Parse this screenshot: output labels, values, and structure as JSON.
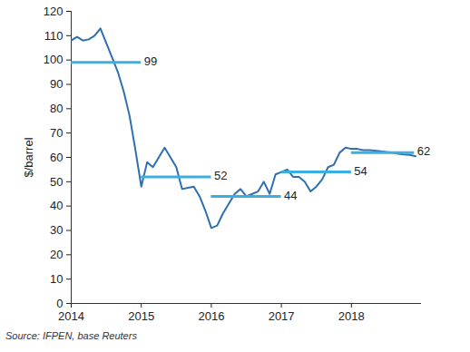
{
  "chart_data": {
    "type": "line",
    "caption": "Source: IFPEN, base Reuters",
    "y_label": "$/barrel",
    "color": "#2f6fb0",
    "x": [
      2014,
      2014.0833,
      2014.1667,
      2014.25,
      2014.3333,
      2014.4167,
      2014.5,
      2014.5833,
      2014.6667,
      2014.75,
      2014.8333,
      2014.9167,
      2015,
      2015.0833,
      2015.1667,
      2015.25,
      2015.3333,
      2015.4167,
      2015.5,
      2015.5833,
      2015.6667,
      2015.75,
      2015.8333,
      2015.9167,
      2016,
      2016.0833,
      2016.1667,
      2016.25,
      2016.3333,
      2016.4167,
      2016.5,
      2016.5833,
      2016.6667,
      2016.75,
      2016.8333,
      2016.9167,
      2017,
      2017.0833,
      2017.1667,
      2017.25,
      2017.3333,
      2017.4167,
      2017.5,
      2017.5833,
      2017.6667,
      2017.75,
      2017.8333,
      2017.9167,
      2018,
      2018.0833,
      2018.1667,
      2018.25,
      2018.3333,
      2018.4167,
      2018.5,
      2018.5833,
      2018.6667,
      2018.75,
      2018.8333,
      2018.9167
    ],
    "values": [
      108,
      109.5,
      108,
      108.5,
      110,
      113,
      107,
      101,
      95,
      87,
      77,
      63,
      48,
      58,
      56,
      60,
      64,
      60,
      56,
      47,
      47.5,
      48,
      44,
      38,
      31,
      32,
      37,
      41,
      45,
      47,
      44,
      45,
      46,
      50,
      45,
      53,
      54,
      55,
      52,
      52,
      50,
      46,
      48,
      51,
      56,
      57,
      62,
      64,
      63.5,
      63.5,
      63,
      63,
      62.8,
      62.5,
      62.2,
      62,
      61.5,
      61.2,
      61,
      60.5
    ],
    "averages": {
      "color": "#3ab0e0",
      "from": [
        2014,
        2015,
        2016,
        2017,
        2018
      ],
      "to": [
        2015,
        2016,
        2017,
        2018,
        2018.9
      ],
      "values": [
        99,
        52,
        44,
        54,
        62
      ],
      "data_labels": true
    },
    "xlim": [
      2014,
      2019
    ],
    "xticks": [
      2014,
      2015,
      2016,
      2017,
      2018
    ],
    "ylim": [
      0,
      120
    ],
    "yticks": [
      0,
      10,
      20,
      30,
      40,
      50,
      60,
      70,
      80,
      90,
      100,
      110,
      120
    ],
    "grid": false
  }
}
